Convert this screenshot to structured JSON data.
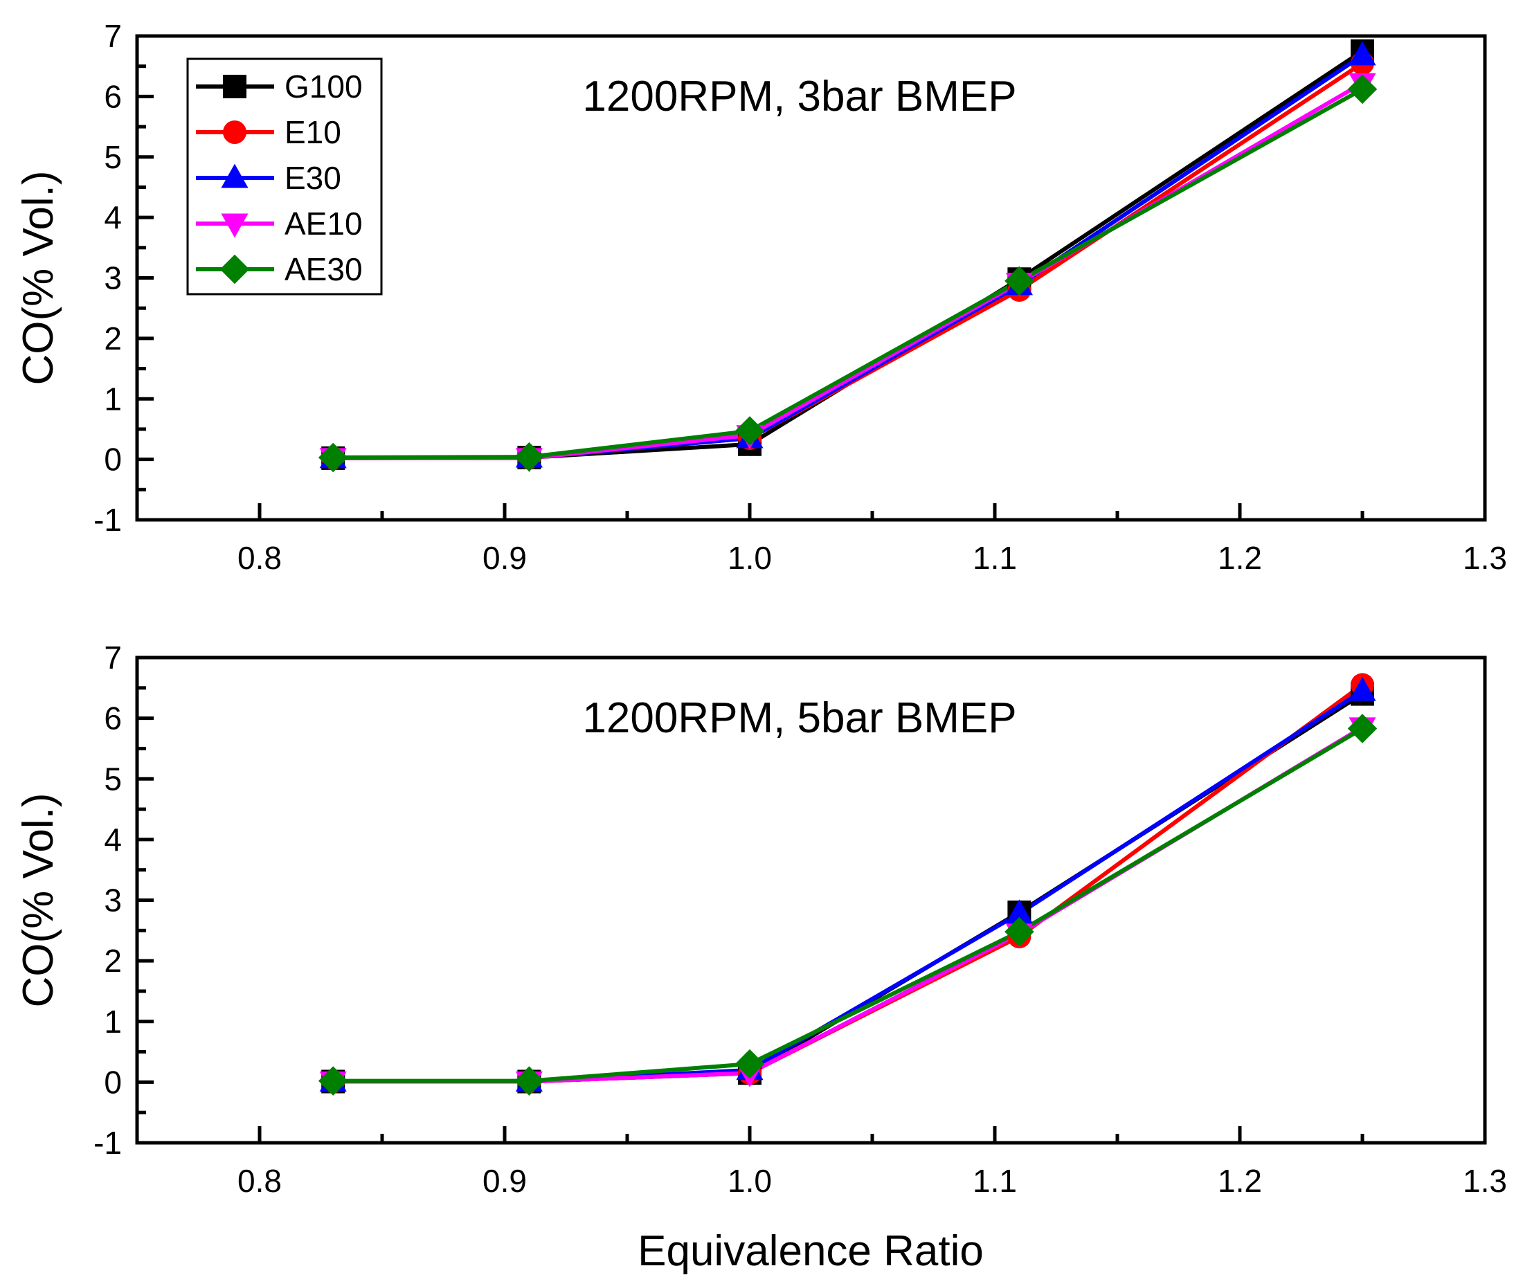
{
  "chart_data": [
    {
      "type": "line",
      "title": "1200RPM, 3bar BMEP",
      "xlabel": "",
      "ylabel": "CO(% Vol.)",
      "xlim": [
        0.75,
        1.3
      ],
      "ylim": [
        -1,
        7
      ],
      "xticks": [
        "0.8",
        "0.9",
        "1.0",
        "1.1",
        "1.2",
        "1.3"
      ],
      "yticks": [
        "-1",
        "0",
        "1",
        "2",
        "3",
        "4",
        "5",
        "6",
        "7"
      ],
      "legend_position": "top-left",
      "x": [
        0.83,
        0.91,
        1.0,
        1.11,
        1.25
      ],
      "series": [
        {
          "name": "G100",
          "color": "#000000",
          "marker": "square",
          "values": [
            0.02,
            0.03,
            0.25,
            2.98,
            6.75
          ]
        },
        {
          "name": "E10",
          "color": "#ff0000",
          "marker": "circle",
          "values": [
            0.02,
            0.03,
            0.35,
            2.8,
            6.55
          ]
        },
        {
          "name": "E30",
          "color": "#0000ff",
          "marker": "triangle-up",
          "values": [
            0.02,
            0.03,
            0.35,
            2.88,
            6.68
          ]
        },
        {
          "name": "AE10",
          "color": "#ff00ff",
          "marker": "triangle-down",
          "values": [
            0.02,
            0.02,
            0.4,
            2.92,
            6.22
          ]
        },
        {
          "name": "AE30",
          "color": "#008000",
          "marker": "diamond",
          "values": [
            0.03,
            0.04,
            0.47,
            2.95,
            6.12
          ]
        }
      ]
    },
    {
      "type": "line",
      "title": "1200RPM, 5bar BMEP",
      "xlabel": "Equivalence Ratio",
      "ylabel": "CO(% Vol.)",
      "xlim": [
        0.75,
        1.3
      ],
      "ylim": [
        -1,
        7
      ],
      "xticks": [
        "0.8",
        "0.9",
        "1.0",
        "1.1",
        "1.2",
        "1.3"
      ],
      "yticks": [
        "-1",
        "0",
        "1",
        "2",
        "3",
        "4",
        "5",
        "6",
        "7"
      ],
      "x": [
        0.83,
        0.91,
        1.0,
        1.11,
        1.25
      ],
      "series": [
        {
          "name": "G100",
          "color": "#000000",
          "marker": "square",
          "values": [
            0.01,
            0.01,
            0.15,
            2.8,
            6.4
          ]
        },
        {
          "name": "E10",
          "color": "#ff0000",
          "marker": "circle",
          "values": [
            0.01,
            0.01,
            0.15,
            2.4,
            6.55
          ]
        },
        {
          "name": "E30",
          "color": "#0000ff",
          "marker": "triangle-up",
          "values": [
            0.01,
            0.01,
            0.2,
            2.78,
            6.45
          ]
        },
        {
          "name": "AE10",
          "color": "#ff00ff",
          "marker": "triangle-down",
          "values": [
            0.01,
            0.01,
            0.15,
            2.45,
            5.85
          ]
        },
        {
          "name": "AE30",
          "color": "#008000",
          "marker": "diamond",
          "values": [
            0.02,
            0.02,
            0.3,
            2.48,
            5.83
          ]
        }
      ]
    }
  ]
}
